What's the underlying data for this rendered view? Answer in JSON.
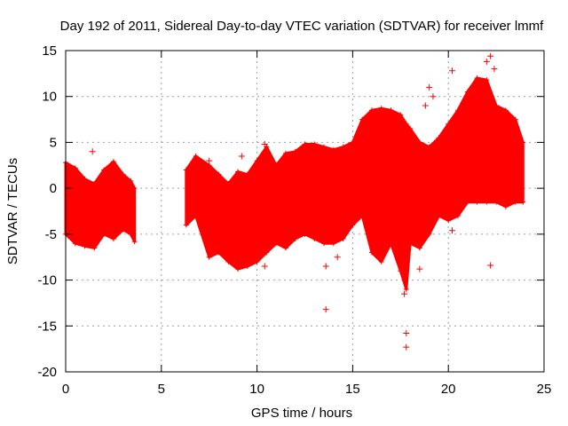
{
  "chart_data": {
    "type": "scatter",
    "title": "Day 192 of 2011, Sidereal Day-to-day VTEC variation (SDTVAR) for receiver lmmf",
    "xlabel": "GPS time / hours",
    "ylabel": "SDTVAR / TECUs",
    "xlim": [
      0,
      25
    ],
    "ylim": [
      -20,
      15
    ],
    "xticks": [
      "0",
      "5",
      "10",
      "15",
      "20",
      "25"
    ],
    "yticks": [
      "15",
      "10",
      "5",
      "0",
      "-5",
      "-10",
      "-15",
      "-20"
    ],
    "grid": true,
    "legend": "none",
    "marker": "+",
    "series_color": "#ff0000",
    "bands": [
      {
        "name": "segment-1",
        "x": [
          0.0,
          0.5,
          1.0,
          1.5,
          2.0,
          2.5,
          3.0,
          3.4,
          3.6
        ],
        "upper": [
          2.8,
          2.2,
          1.0,
          0.5,
          2.0,
          2.9,
          1.5,
          0.8,
          0.0
        ],
        "lower": [
          -5.0,
          -6.0,
          -6.3,
          -6.5,
          -5.0,
          -5.5,
          -4.5,
          -5.0,
          -5.8
        ]
      },
      {
        "name": "segment-2",
        "x": [
          6.3,
          6.8,
          7.5,
          8.0,
          8.5,
          9.0,
          9.5,
          10.0,
          10.5,
          11.0,
          11.5,
          12.0,
          12.5,
          13.0,
          13.5,
          14.0,
          14.5,
          15.0,
          15.5,
          16.0,
          16.5,
          17.0,
          17.5,
          17.8,
          18.0,
          18.5,
          19.0,
          19.5,
          20.0,
          20.5,
          21.0,
          21.5,
          22.0,
          22.5,
          23.0,
          23.5,
          23.9
        ],
        "upper": [
          2.0,
          3.5,
          2.5,
          1.5,
          0.5,
          1.8,
          1.5,
          3.0,
          4.5,
          2.5,
          3.8,
          4.0,
          4.8,
          4.8,
          4.5,
          4.2,
          4.5,
          5.0,
          7.5,
          8.5,
          8.7,
          8.5,
          8.0,
          7.0,
          6.5,
          5.0,
          4.5,
          5.5,
          7.0,
          8.5,
          10.5,
          12.0,
          11.8,
          9.0,
          8.5,
          7.5,
          5.0
        ],
        "lower": [
          -4.0,
          -3.0,
          -7.5,
          -7.0,
          -8.0,
          -8.8,
          -8.5,
          -8.0,
          -7.0,
          -6.0,
          -6.5,
          -5.5,
          -5.0,
          -5.5,
          -6.0,
          -6.0,
          -5.5,
          -4.0,
          -3.0,
          -7.0,
          -8.0,
          -6.0,
          -9.0,
          -11.0,
          -6.0,
          -6.5,
          -5.0,
          -3.0,
          -3.5,
          -3.0,
          -1.5,
          -1.5,
          -1.5,
          -1.5,
          -2.0,
          -1.5,
          -1.5
        ]
      }
    ],
    "outliers": [
      {
        "x": 1.4,
        "y": 4.0
      },
      {
        "x": 7.5,
        "y": 3.0
      },
      {
        "x": 9.2,
        "y": 3.5
      },
      {
        "x": 10.4,
        "y": 4.8
      },
      {
        "x": 10.4,
        "y": -8.5
      },
      {
        "x": 13.6,
        "y": -8.5
      },
      {
        "x": 13.6,
        "y": -13.2
      },
      {
        "x": 14.2,
        "y": -7.5
      },
      {
        "x": 17.8,
        "y": -15.8
      },
      {
        "x": 17.8,
        "y": -17.3
      },
      {
        "x": 17.7,
        "y": -11.5
      },
      {
        "x": 18.5,
        "y": -8.8
      },
      {
        "x": 18.8,
        "y": 9.0
      },
      {
        "x": 19.0,
        "y": 11.0
      },
      {
        "x": 19.2,
        "y": 10.0
      },
      {
        "x": 20.2,
        "y": 12.8
      },
      {
        "x": 20.2,
        "y": -4.6
      },
      {
        "x": 22.0,
        "y": 13.8
      },
      {
        "x": 22.2,
        "y": 14.4
      },
      {
        "x": 22.2,
        "y": -8.4
      },
      {
        "x": 22.4,
        "y": 13.0
      }
    ]
  }
}
